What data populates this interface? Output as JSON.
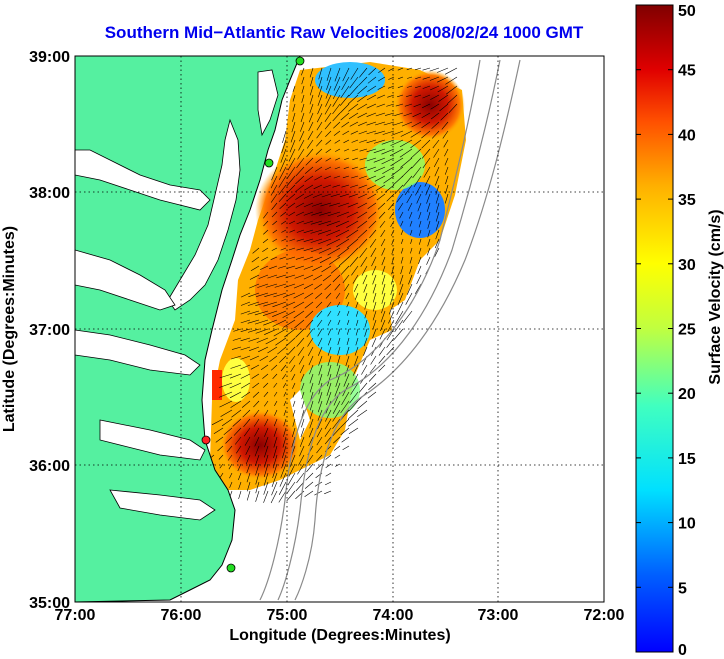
{
  "title": "Southern Mid−Atlantic Raw Velocities 2008/02/24 1000 GMT",
  "x_axis": {
    "label": "Longitude (Degrees:Minutes)",
    "ticks": [
      "77:00",
      "76:00",
      "75:00",
      "74:00",
      "73:00",
      "72:00"
    ]
  },
  "y_axis": {
    "label": "Latitude (Degrees:Minutes)",
    "ticks": [
      "39:00",
      "38:00",
      "37:00",
      "36:00",
      "35:00"
    ]
  },
  "colorbar": {
    "label": "Surface Velocity (cm/s)",
    "min": 0,
    "max": 50,
    "ticks": [
      "50",
      "45",
      "40",
      "35",
      "30",
      "25",
      "20",
      "15",
      "10",
      "5",
      "0"
    ]
  },
  "colors": {
    "land": "#55f0a0",
    "coastline": "#000000",
    "bathymetry": "#8a8a8a",
    "grid": "#000000",
    "title": "#0000ee",
    "station": "#22dd22",
    "station_alert": "#ff2222"
  },
  "icons": {
    "station": "station-marker-icon",
    "vector": "velocity-arrow-icon"
  }
}
